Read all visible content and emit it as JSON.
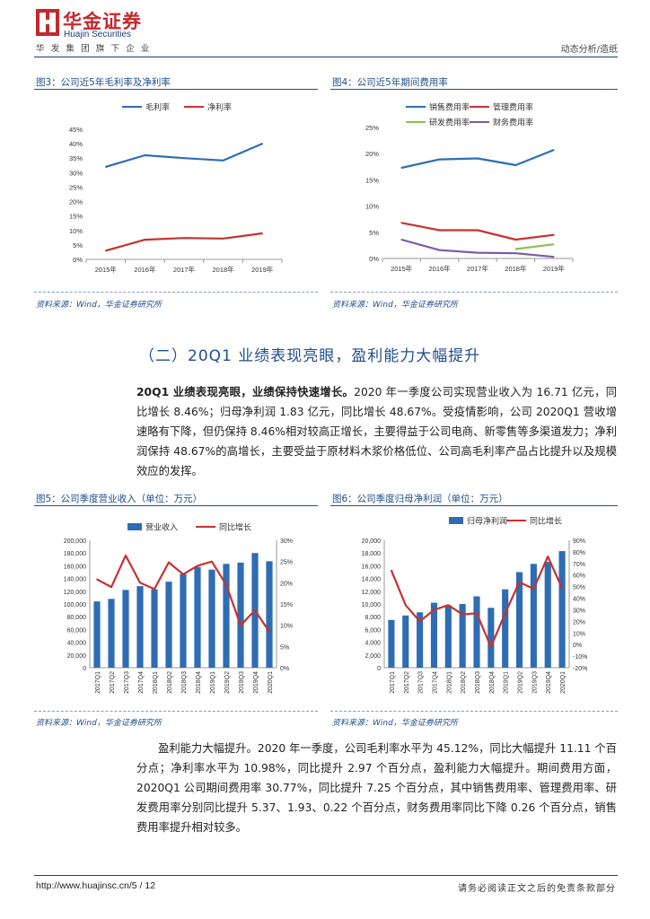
{
  "header": {
    "company_cn": "华金证券",
    "company_en": "Huajin Securities",
    "subtitle": "华发集团旗下企业",
    "report_type": "动态分析/造纸"
  },
  "figures": [
    {
      "title": "图3：公司近5年毛利率及净利率",
      "source": "资料来源：Wind，华金证券研究所"
    },
    {
      "title": "图4：公司近5年期间费用率",
      "source": "资料来源：Wind，华金证券研究所"
    },
    {
      "title": "图5：公司季度营业收入（单位：万元）",
      "source": "资料来源：Wind，华金证券研究所"
    },
    {
      "title": "图6：公司季度归母净利润（单位：万元）",
      "source": "资料来源：Wind，华金证券研究所"
    }
  ],
  "section": {
    "title": "（二）20Q1 业绩表现亮眼，盈利能力大幅提升"
  },
  "paragraphs": {
    "p1_bold": "20Q1 业绩表现亮眼，业绩保持快速增长。",
    "p1_text": "2020 年一季度公司实现营业收入为 16.71 亿元，同比增长 8.46%；归母净利润 1.83 亿元，同比增长 48.67%。受疫情影响，公司 2020Q1 营收增速略有下降，但仍保持 8.46%相对较高正增长，主要得益于公司电商、新零售等多渠道发力；净利润保持 48.67%的高增长，主要受益于原材料木浆价格低位、公司高毛利率产品占比提升以及规模效应的发挥。",
    "p2_text": "盈利能力大幅提升。2020 年一季度，公司毛利率水平为 45.12%，同比大幅提升 11.11 个百分点；净利率水平为 10.98%，同比提升 2.97 个百分点，盈利能力大幅提升。期间费用方面，2020Q1 公司期间费用率 30.77%，同比提升 7.25 个百分点，其中销售费用率、管理费用率、研发费用率分别同比提升 5.37、1.93、0.22 个百分点，财务费用率同比下降 0.26 个百分点，销售费用率提升相对较多。"
  },
  "footer": {
    "url_page": "http://www.huajinsc.cn/5 / 12",
    "disclaimer": "请务必阅读正文之后的免责条款部分"
  },
  "chart_data": [
    {
      "type": "line",
      "title": "图3：公司近5年毛利率及净利率",
      "categories": [
        "2015年",
        "2016年",
        "2017年",
        "2018年",
        "2019年"
      ],
      "yticks": [
        "0%",
        "5%",
        "10%",
        "15%",
        "20%",
        "25%",
        "30%",
        "35%",
        "40%",
        "45%"
      ],
      "ylim": [
        0,
        45
      ],
      "series": [
        {
          "name": "毛利率",
          "color": "#2e6db4",
          "values": [
            32.0,
            36.0,
            35.0,
            34.2,
            40.0
          ]
        },
        {
          "name": "净利率",
          "color": "#c8312f",
          "values": [
            3.0,
            6.8,
            7.4,
            7.2,
            9.0
          ]
        }
      ]
    },
    {
      "type": "line",
      "title": "图4：公司近5年期间费用率",
      "categories": [
        "2015年",
        "2016年",
        "2017年",
        "2018年",
        "2019年"
      ],
      "yticks": [
        "0%",
        "5%",
        "10%",
        "15%",
        "20%",
        "25%"
      ],
      "ylim": [
        0,
        25
      ],
      "series": [
        {
          "name": "销售费用率",
          "color": "#2e6db4",
          "values": [
            17.3,
            18.9,
            19.1,
            17.8,
            20.7
          ]
        },
        {
          "name": "管理费用率",
          "color": "#c8312f",
          "values": [
            6.8,
            5.4,
            5.4,
            3.6,
            4.5
          ]
        },
        {
          "name": "研发费用率",
          "color": "#8cc152",
          "values": [
            null,
            null,
            null,
            1.8,
            2.7
          ]
        },
        {
          "name": "财务费用率",
          "color": "#7b5aa6",
          "values": [
            3.6,
            1.6,
            1.1,
            1.0,
            0.3
          ]
        }
      ]
    },
    {
      "type": "bar+line",
      "title": "图5：公司季度营业收入（单位：万元）",
      "categories": [
        "2017Q1",
        "2017Q2",
        "2017Q3",
        "2017Q4",
        "2018Q1",
        "2018Q2",
        "2018Q3",
        "2018Q4",
        "2019Q1",
        "2019Q2",
        "2019Q3",
        "2019Q4",
        "2020Q1"
      ],
      "yticks_left": [
        "0",
        "20,000",
        "40,000",
        "60,000",
        "80,000",
        "100,000",
        "120,000",
        "140,000",
        "160,000",
        "180,000",
        "200,000"
      ],
      "ylim_left": [
        0,
        200000
      ],
      "yticks_right": [
        "0%",
        "5%",
        "10%",
        "15%",
        "20%",
        "25%",
        "30%"
      ],
      "ylim_right": [
        0,
        30
      ],
      "series": [
        {
          "name": "营业收入",
          "type": "bar",
          "axis": "left",
          "color": "#2e6db4",
          "values": [
            104000,
            108000,
            122000,
            128000,
            123000,
            135000,
            147000,
            158000,
            154000,
            163000,
            165000,
            180000,
            167100
          ]
        },
        {
          "name": "同比增长",
          "type": "line",
          "axis": "right",
          "color": "#c8312f",
          "values": [
            20.8,
            19.0,
            26.4,
            20.0,
            18.5,
            24.8,
            22.0,
            24.0,
            25.0,
            19.5,
            10.0,
            13.5,
            8.46
          ]
        }
      ]
    },
    {
      "type": "bar+line",
      "title": "图6：公司季度归母净利润（单位：万元）",
      "categories": [
        "2017Q1",
        "2017Q2",
        "2017Q3",
        "2017Q4",
        "2018Q1",
        "2018Q2",
        "2018Q3",
        "2018Q4",
        "2019Q1",
        "2019Q2",
        "2019Q3",
        "2019Q4",
        "2020Q1"
      ],
      "yticks_left": [
        "0",
        "2,000",
        "4,000",
        "6,000",
        "8,000",
        "10,000",
        "12,000",
        "14,000",
        "16,000",
        "18,000",
        "20,000"
      ],
      "ylim_left": [
        0,
        20000
      ],
      "yticks_right": [
        "-20%",
        "-10%",
        "0%",
        "10%",
        "20%",
        "30%",
        "40%",
        "50%",
        "60%",
        "70%",
        "80%",
        "90%"
      ],
      "ylim_right": [
        -20,
        90
      ],
      "series": [
        {
          "name": "归母净利润",
          "type": "bar",
          "axis": "left",
          "color": "#2e6db4",
          "values": [
            7500,
            8200,
            8700,
            10200,
            9800,
            10000,
            11200,
            9400,
            12300,
            15000,
            16300,
            16600,
            18300
          ]
        },
        {
          "name": "同比增长",
          "type": "line",
          "axis": "right",
          "color": "#c8312f",
          "values": [
            64.0,
            34.0,
            20.0,
            30.0,
            34.0,
            26.0,
            27.0,
            -2.0,
            27.0,
            54.0,
            48.0,
            76.0,
            48.67
          ]
        }
      ]
    }
  ]
}
